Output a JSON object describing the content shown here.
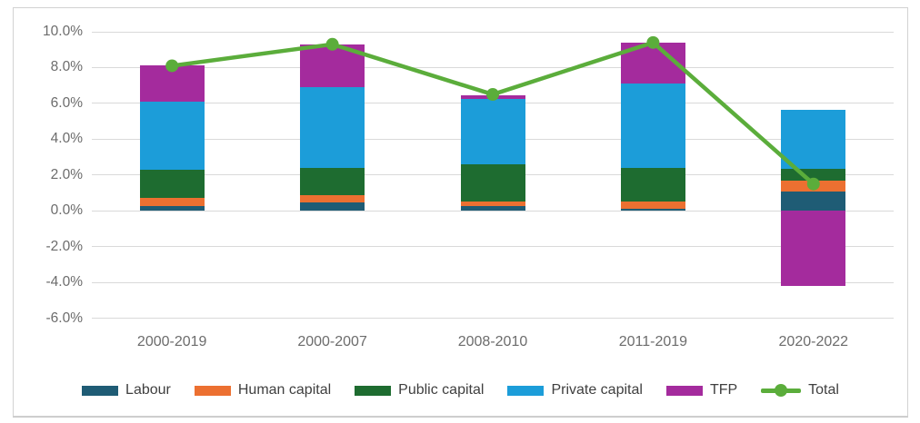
{
  "chart_data": {
    "type": "bar",
    "subtype": "stacked-column-with-line-overlay",
    "title": "",
    "xlabel": "",
    "ylabel": "",
    "categories": [
      "2000-2019",
      "2000-2007",
      "2008-2010",
      "2011-2019",
      "2020-2022"
    ],
    "series": [
      {
        "name": "Labour",
        "color": "#1f5c75",
        "values": [
          0.25,
          0.45,
          0.25,
          0.1,
          1.1
        ]
      },
      {
        "name": "Human capital",
        "color": "#ec7031",
        "values": [
          0.45,
          0.45,
          0.25,
          0.4,
          0.6
        ]
      },
      {
        "name": "Public capital",
        "color": "#1e6c30",
        "values": [
          1.6,
          1.5,
          2.1,
          1.9,
          0.65
        ]
      },
      {
        "name": "Private capital",
        "color": "#1c9dd9",
        "values": [
          3.8,
          4.5,
          3.65,
          4.7,
          3.3
        ]
      },
      {
        "name": "TFP",
        "color": "#a42b9d",
        "values": [
          2.0,
          2.4,
          0.2,
          2.3,
          -4.2
        ]
      }
    ],
    "line_series": {
      "name": "Total",
      "color": "#5bad3b",
      "values": [
        8.1,
        9.3,
        6.5,
        9.4,
        1.5
      ]
    },
    "ylim": [
      -6,
      10
    ],
    "grid": true,
    "legend_position": "bottom",
    "y_ticks": [
      {
        "label": "10.0%",
        "value": 10
      },
      {
        "label": "8.0%",
        "value": 8
      },
      {
        "label": "6.0%",
        "value": 6
      },
      {
        "label": "4.0%",
        "value": 4
      },
      {
        "label": "2.0%",
        "value": 2
      },
      {
        "label": "0.0%",
        "value": 0
      },
      {
        "label": "-2.0%",
        "value": -2
      },
      {
        "label": "-4.0%",
        "value": -4
      },
      {
        "label": "-6.0%",
        "value": -6
      }
    ]
  },
  "colors": {
    "gridline": "#d9d9d9",
    "frame_border": "#d2d2d2",
    "axis_label": "#6c6c6c",
    "legend_label": "#3f3f3f",
    "background": "#ffffff"
  }
}
